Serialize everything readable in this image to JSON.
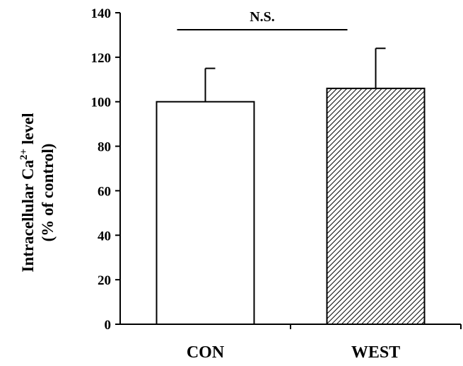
{
  "chart_data": {
    "type": "bar",
    "categories": [
      "CON",
      "WEST"
    ],
    "values": [
      100,
      106
    ],
    "errors": [
      15,
      18
    ],
    "ylabel_line1": "Intracellular Ca",
    "ylabel_sup": "2+",
    "ylabel_line1_end": " level",
    "ylabel_line2": "(% of control)",
    "ylim": [
      0,
      140
    ],
    "yticks": [
      0,
      20,
      40,
      60,
      80,
      100,
      120,
      140
    ],
    "bar_fills": [
      "plain",
      "hatched"
    ],
    "bar_color": "#ffffff",
    "stroke_color": "#000000",
    "significance": {
      "label": "N.S.",
      "between": [
        "CON",
        "WEST"
      ]
    },
    "grid": false,
    "legend": "none"
  }
}
